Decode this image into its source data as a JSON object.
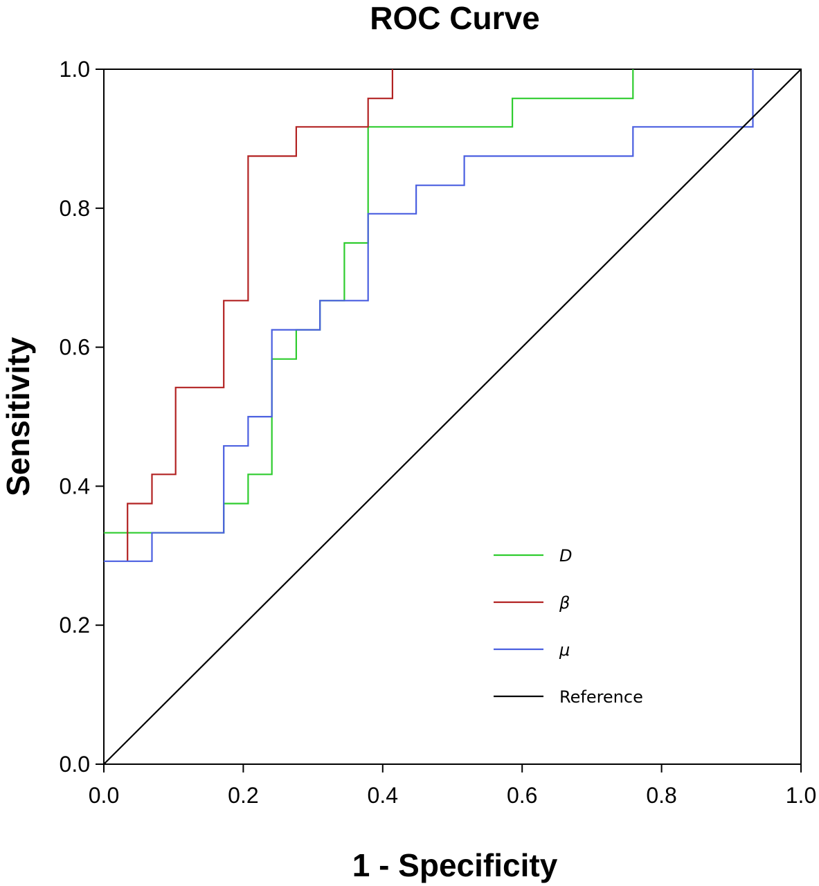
{
  "chart_data": {
    "type": "line",
    "title": "ROC Curve",
    "xlabel": "1 - Specificity",
    "ylabel": "Sensitivity",
    "xlim": [
      0,
      1
    ],
    "ylim": [
      0,
      1
    ],
    "xticks": [
      "0.0",
      "0.2",
      "0.4",
      "0.6",
      "0.8",
      "1.0"
    ],
    "yticks": [
      "0.0",
      "0.2",
      "0.4",
      "0.6",
      "0.8",
      "1.0"
    ],
    "grid": false,
    "legend_position": "bottom-right",
    "series": [
      {
        "name": "D",
        "color": "#2ecc2e",
        "italic": true,
        "points": [
          [
            0,
            0.333
          ],
          [
            0.172,
            0.333
          ],
          [
            0.172,
            0.375
          ],
          [
            0.207,
            0.375
          ],
          [
            0.207,
            0.417
          ],
          [
            0.241,
            0.417
          ],
          [
            0.241,
            0.583
          ],
          [
            0.276,
            0.583
          ],
          [
            0.276,
            0.625
          ],
          [
            0.31,
            0.625
          ],
          [
            0.31,
            0.667
          ],
          [
            0.345,
            0.667
          ],
          [
            0.345,
            0.75
          ],
          [
            0.379,
            0.75
          ],
          [
            0.379,
            0.917
          ],
          [
            0.586,
            0.917
          ],
          [
            0.586,
            0.958
          ],
          [
            0.759,
            0.958
          ],
          [
            0.759,
            1.0
          ]
        ]
      },
      {
        "name": "β",
        "color": "#b22222",
        "italic": true,
        "points": [
          [
            0.034,
            0.292
          ],
          [
            0.034,
            0.375
          ],
          [
            0.069,
            0.375
          ],
          [
            0.069,
            0.417
          ],
          [
            0.103,
            0.417
          ],
          [
            0.103,
            0.542
          ],
          [
            0.172,
            0.542
          ],
          [
            0.172,
            0.667
          ],
          [
            0.207,
            0.667
          ],
          [
            0.207,
            0.875
          ],
          [
            0.276,
            0.875
          ],
          [
            0.276,
            0.917
          ],
          [
            0.379,
            0.917
          ],
          [
            0.379,
            0.958
          ],
          [
            0.414,
            0.958
          ],
          [
            0.414,
            1.0
          ]
        ]
      },
      {
        "name": "μ",
        "color": "#4a5fe0",
        "italic": true,
        "points": [
          [
            0,
            0.292
          ],
          [
            0.069,
            0.292
          ],
          [
            0.069,
            0.333
          ],
          [
            0.172,
            0.333
          ],
          [
            0.172,
            0.458
          ],
          [
            0.207,
            0.458
          ],
          [
            0.207,
            0.5
          ],
          [
            0.241,
            0.5
          ],
          [
            0.241,
            0.625
          ],
          [
            0.31,
            0.625
          ],
          [
            0.31,
            0.667
          ],
          [
            0.379,
            0.667
          ],
          [
            0.379,
            0.792
          ],
          [
            0.448,
            0.792
          ],
          [
            0.448,
            0.833
          ],
          [
            0.517,
            0.833
          ],
          [
            0.517,
            0.875
          ],
          [
            0.759,
            0.875
          ],
          [
            0.759,
            0.917
          ],
          [
            0.931,
            0.917
          ],
          [
            0.931,
            1.0
          ]
        ]
      },
      {
        "name": "Reference",
        "color": "#000000",
        "italic": false,
        "points": [
          [
            0,
            0
          ],
          [
            1,
            1
          ]
        ]
      }
    ]
  }
}
